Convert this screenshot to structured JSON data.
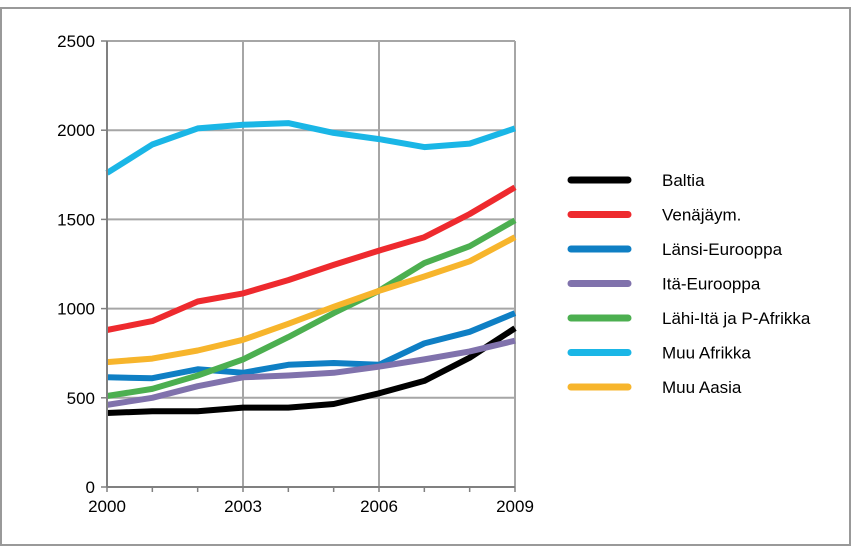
{
  "chart_data": {
    "type": "line",
    "title": "",
    "xlabel": "",
    "ylabel": "",
    "x": [
      2000,
      2001,
      2002,
      2003,
      2004,
      2005,
      2006,
      2007,
      2008,
      2009
    ],
    "xticks": [
      "2000",
      "2003",
      "2006",
      "2009"
    ],
    "yticks": [
      "0",
      "500",
      "1000",
      "1500",
      "2000",
      "2500"
    ],
    "ylim": [
      0,
      2500
    ],
    "grid": true,
    "legend_position": "right",
    "series": [
      {
        "name": "Baltia",
        "color": "#000000",
        "values": [
          415,
          425,
          425,
          445,
          445,
          465,
          525,
          595,
          725,
          890
        ]
      },
      {
        "name": "Venäjäym.",
        "color": "#ee2a2e",
        "values": [
          880,
          930,
          1040,
          1085,
          1160,
          1245,
          1325,
          1400,
          1530,
          1680
        ]
      },
      {
        "name": "Länsi-Eurooppa",
        "color": "#0f7fc4",
        "values": [
          615,
          610,
          660,
          640,
          685,
          695,
          685,
          805,
          870,
          975
        ]
      },
      {
        "name": "Itä-Eurooppa",
        "color": "#8072ac",
        "values": [
          460,
          500,
          565,
          615,
          625,
          640,
          675,
          715,
          760,
          820
        ]
      },
      {
        "name": "Lähi-Itä ja P-Afrikka",
        "color": "#4caf50",
        "values": [
          510,
          550,
          625,
          715,
          840,
          975,
          1100,
          1255,
          1350,
          1495
        ]
      },
      {
        "name": "Muu Afrikka",
        "color": "#1ab6e6",
        "values": [
          1760,
          1920,
          2010,
          2030,
          2040,
          1985,
          1950,
          1905,
          1925,
          2010
        ]
      },
      {
        "name": "Muu Aasia",
        "color": "#f7b52c",
        "values": [
          700,
          720,
          765,
          825,
          915,
          1010,
          1100,
          1180,
          1265,
          1400
        ]
      }
    ]
  }
}
